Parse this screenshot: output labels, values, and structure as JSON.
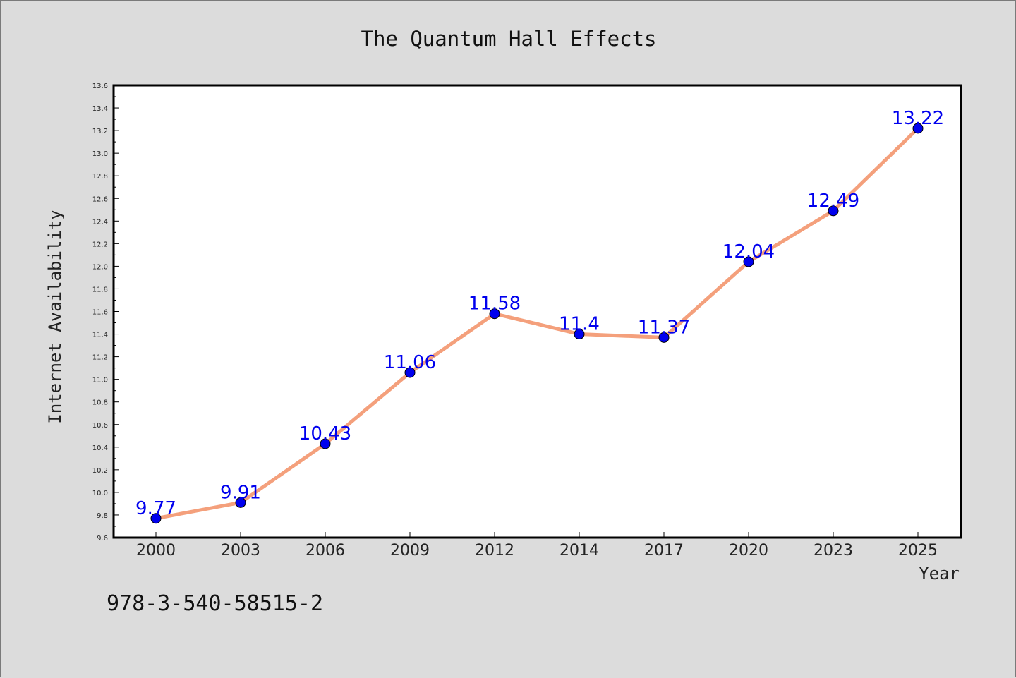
{
  "colors": {
    "background": "#dcdcdc",
    "plot_background": "#ffffff",
    "line": "#f4a07c",
    "marker": "#0000ee",
    "data_label": "#0000ee"
  },
  "footer": {
    "isbn": "978-3-540-58515-2"
  },
  "chart_data": {
    "type": "line",
    "title": "The Quantum Hall Effects",
    "xlabel": "Year",
    "ylabel": "Internet Availability",
    "categories": [
      "2000",
      "2003",
      "2006",
      "2009",
      "2012",
      "2014",
      "2017",
      "2020",
      "2023",
      "2025"
    ],
    "series": [
      {
        "values": [
          9.77,
          9.91,
          10.43,
          11.06,
          11.58,
          11.4,
          11.37,
          12.04,
          12.49,
          13.22
        ]
      }
    ],
    "data_labels": [
      "9.77",
      "9.91",
      "10.43",
      "11.06",
      "11.58",
      "11.4",
      "11.37",
      "12.04",
      "12.49",
      "13.22"
    ],
    "ylim": [
      9.6,
      13.6
    ],
    "yticks": [
      "9.6",
      "9.8",
      "10.0",
      "10.2",
      "10.4",
      "10.6",
      "10.8",
      "11.0",
      "11.2",
      "11.4",
      "11.6",
      "11.8",
      "12.0",
      "12.2",
      "12.4",
      "12.6",
      "12.8",
      "13.0",
      "13.2",
      "13.4",
      "13.6"
    ],
    "grid": false,
    "markers": true,
    "legend": "none"
  }
}
